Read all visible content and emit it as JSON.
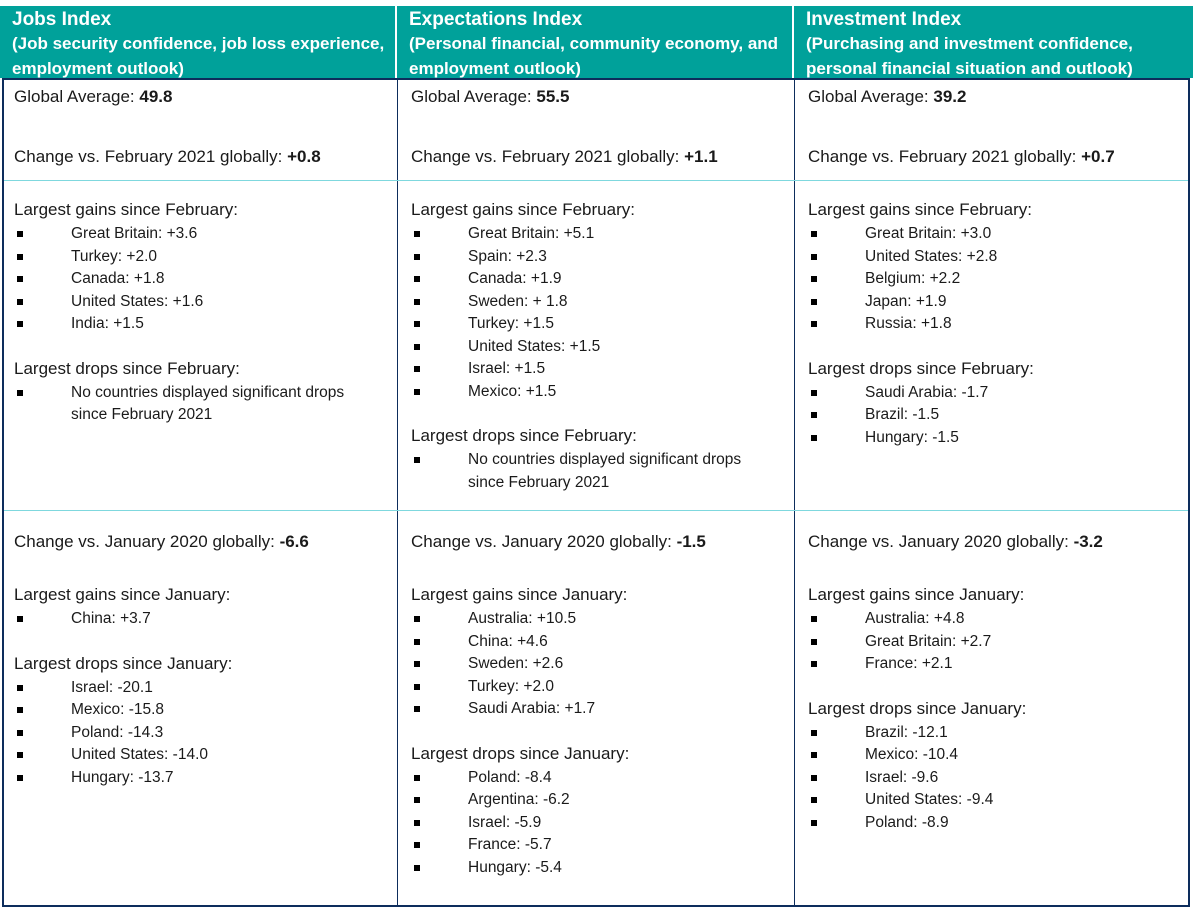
{
  "columns": [
    {
      "title": "Jobs Index",
      "subtitle": "(Job security confidence, job loss experience, employment outlook)",
      "global_average_label": "Global Average: ",
      "global_average_value": "49.8",
      "feb_change_label": "Change vs. February 2021 globally: ",
      "feb_change_value": "+0.8",
      "feb_gains_heading": "Largest gains since February:",
      "feb_gains": [
        "Great Britain: +3.6",
        "Turkey: +2.0",
        "Canada: +1.8",
        "United States: +1.6",
        "India: +1.5"
      ],
      "feb_drops_heading": "Largest drops since February:",
      "feb_drops": [
        "No countries displayed significant drops since February 2021"
      ],
      "jan_change_label": "Change vs. January 2020 globally: ",
      "jan_change_value": "-6.6",
      "jan_gains_heading": "Largest gains since January:",
      "jan_gains": [
        "China: +3.7"
      ],
      "jan_drops_heading": "Largest drops since January:",
      "jan_drops": [
        "Israel: -20.1",
        "Mexico: -15.8",
        "Poland: -14.3",
        "United States: -14.0",
        "Hungary: -13.7"
      ]
    },
    {
      "title": "Expectations Index",
      "subtitle": "(Personal financial, community economy, and employment outlook)",
      "global_average_label": "Global Average: ",
      "global_average_value": "55.5",
      "feb_change_label": "Change vs. February 2021 globally: ",
      "feb_change_value": "+1.1",
      "feb_gains_heading": "Largest gains since February:",
      "feb_gains": [
        "Great Britain: +5.1",
        "Spain: +2.3",
        "Canada: +1.9",
        "Sweden: + 1.8",
        "Turkey: +1.5",
        "United States: +1.5",
        "Israel: +1.5",
        "Mexico: +1.5"
      ],
      "feb_drops_heading": "Largest drops since February:",
      "feb_drops": [
        "No countries displayed significant drops since February 2021"
      ],
      "jan_change_label": "Change vs. January 2020 globally: ",
      "jan_change_value": "-1.5",
      "jan_gains_heading": "Largest gains since January:",
      "jan_gains": [
        "Australia: +10.5",
        "China: +4.6",
        "Sweden: +2.6",
        "Turkey: +2.0",
        "Saudi Arabia: +1.7"
      ],
      "jan_drops_heading": "Largest drops since January:",
      "jan_drops": [
        "Poland: -8.4",
        "Argentina: -6.2",
        "Israel: -5.9",
        "France: -5.7",
        "Hungary: -5.4"
      ]
    },
    {
      "title": "Investment Index",
      "subtitle": "(Purchasing and investment confidence, personal financial situation and outlook)",
      "global_average_label": "Global Average: ",
      "global_average_value": "39.2",
      "feb_change_label": "Change vs. February 2021 globally: ",
      "feb_change_value": "+0.7",
      "feb_gains_heading": "Largest gains since February:",
      "feb_gains": [
        "Great Britain: +3.0",
        "United States: +2.8",
        "Belgium: +2.2",
        "Japan: +1.9",
        "Russia: +1.8"
      ],
      "feb_drops_heading": "Largest drops since February:",
      "feb_drops": [
        "Saudi Arabia: -1.7",
        "Brazil: -1.5",
        "Hungary: -1.5"
      ],
      "jan_change_label": "Change vs. January 2020 globally: ",
      "jan_change_value": "-3.2",
      "jan_gains_heading": "Largest gains since January:",
      "jan_gains": [
        "Australia: +4.8",
        "Great Britain: +2.7",
        "France: +2.1"
      ],
      "jan_drops_heading": "Largest drops since January:",
      "jan_drops": [
        "Brazil: -12.1",
        "Mexico: -10.4",
        "Israel: -9.6",
        "United States: -9.4",
        "Poland: -8.9"
      ]
    }
  ],
  "colors": {
    "header_bg": "#00a19a",
    "header_text": "#ffffff",
    "border": "#0d2d5c",
    "row_divider": "#7fd8de"
  }
}
